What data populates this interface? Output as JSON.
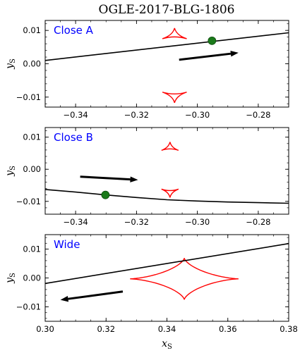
{
  "title": "OGLE-2017-BLG-1806",
  "colors": {
    "trajectory": "#000000",
    "caustic": "#ff0000",
    "source": "#1a7a1a",
    "label": "#0000ff"
  },
  "chart_data": [
    {
      "type": "line",
      "label": "Close A",
      "xlim": [
        -0.35,
        -0.27
      ],
      "ylim": [
        -0.013,
        0.013
      ],
      "xticks": [
        -0.34,
        -0.32,
        -0.3,
        -0.28
      ],
      "xtick_labels": [
        "−0.34",
        "−0.32",
        "−0.30",
        "−0.28"
      ],
      "yticks": [
        0.01,
        0.0,
        -0.01
      ],
      "ytick_labels": [
        "0.01",
        "0.00",
        "−0.01"
      ],
      "ylabel": "y",
      "ylabel_sub": "S",
      "xlabel": "",
      "xlabel_sub": "",
      "trajectory": {
        "x": [
          -0.35,
          -0.27
        ],
        "y": [
          0.001,
          0.0093
        ]
      },
      "source": {
        "x": -0.2952,
        "y": 0.0069
      },
      "arrow": {
        "from": [
          -0.306,
          0.0012
        ],
        "to": [
          -0.2865,
          0.0033
        ]
      },
      "caustics": [
        {
          "cx": -0.3075,
          "cy": 0.0085,
          "hx": 0.004,
          "hy": 0.0022,
          "shape": "triangle-up"
        },
        {
          "cx": -0.3075,
          "cy": -0.0095,
          "hx": 0.004,
          "hy": 0.0022,
          "shape": "triangle-down"
        }
      ]
    },
    {
      "type": "line",
      "label": "Close B",
      "xlim": [
        -0.35,
        -0.27
      ],
      "ylim": [
        -0.014,
        0.013
      ],
      "xticks": [
        -0.34,
        -0.32,
        -0.3,
        -0.28
      ],
      "xtick_labels": [
        "−0.34",
        "−0.32",
        "−0.30",
        "−0.28"
      ],
      "yticks": [
        0.01,
        0.0,
        -0.01
      ],
      "ytick_labels": [
        "0.01",
        "0.00",
        "−0.01"
      ],
      "ylabel": "y",
      "ylabel_sub": "S",
      "xlabel": "",
      "xlabel_sub": "",
      "trajectory": {
        "x": [
          -0.35,
          -0.34,
          -0.33,
          -0.32,
          -0.31,
          -0.3,
          -0.29,
          -0.28,
          -0.27
        ],
        "y": [
          -0.0063,
          -0.0071,
          -0.008,
          -0.0088,
          -0.0095,
          -0.0099,
          -0.0102,
          -0.0104,
          -0.0106
        ]
      },
      "source": {
        "x": -0.3302,
        "y": -0.008
      },
      "arrow": {
        "from": [
          -0.3385,
          -0.0023
        ],
        "to": [
          -0.3195,
          -0.0033
        ]
      },
      "caustics": [
        {
          "cx": -0.309,
          "cy": 0.0067,
          "hx": 0.0028,
          "hy": 0.0018,
          "shape": "triangle-up"
        },
        {
          "cx": -0.309,
          "cy": -0.007,
          "hx": 0.0028,
          "hy": 0.0018,
          "shape": "triangle-down"
        }
      ]
    },
    {
      "type": "line",
      "label": "Wide",
      "xlim": [
        0.3,
        0.38
      ],
      "ylim": [
        -0.015,
        0.015
      ],
      "xticks": [
        0.3,
        0.32,
        0.34,
        0.36,
        0.38
      ],
      "xtick_labels": [
        "0.30",
        "0.32",
        "0.34",
        "0.36",
        "0.38"
      ],
      "yticks": [
        0.01,
        0.0,
        -0.01
      ],
      "ytick_labels": [
        "0.01",
        "0.00",
        "−0.01"
      ],
      "ylabel": "y",
      "ylabel_sub": "S",
      "xlabel": "x",
      "xlabel_sub": "S",
      "trajectory": {
        "x": [
          0.3,
          0.38
        ],
        "y": [
          -0.0019,
          0.0119
        ]
      },
      "source": null,
      "arrow": {
        "from": [
          0.3255,
          -0.0047
        ],
        "to": [
          0.305,
          -0.0076
        ]
      },
      "caustics": [
        {
          "cx": 0.3457,
          "cy": -0.0003,
          "hx": 0.0178,
          "hy": 0.0072,
          "shape": "astroid"
        }
      ]
    }
  ]
}
